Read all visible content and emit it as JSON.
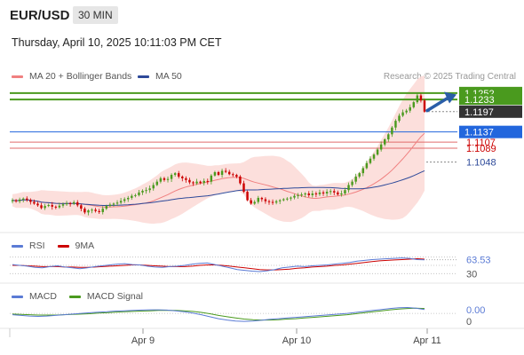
{
  "header": {
    "pair": "EUR/USD",
    "timeframe": "30 MIN",
    "datetime": "Thursday, April 10, 2025 10:11:03 PM CET"
  },
  "legend": {
    "ma20": "MA 20 + Bollinger Bands",
    "ma50": "MA 50",
    "ma20_color": "#f08080",
    "ma50_color": "#2e4a9a",
    "research": "Research © 2025 Trading Central"
  },
  "rsi_legend": {
    "rsi": "RSI",
    "ma9": "9MA",
    "rsi_color": "#5b7bd5",
    "ma9_color": "#cc0000"
  },
  "macd_legend": {
    "macd": "MACD",
    "signal": "MACD Signal",
    "macd_color": "#5b7bd5",
    "signal_color": "#4a9a1e"
  },
  "chart_data": [
    {
      "type": "candlestick",
      "name": "price",
      "xlabels": [
        "Apr 9",
        "Apr 10",
        "Apr 11"
      ],
      "levels": [
        {
          "value": 1.1252,
          "label": "1.1252",
          "kind": "resistance-green",
          "color": "#4a9a1e"
        },
        {
          "value": 1.1233,
          "label": "1.1233",
          "kind": "resistance-green",
          "color": "#4a9a1e"
        },
        {
          "value": 1.1197,
          "label": "1.1197",
          "kind": "last-price",
          "color": "#333333"
        },
        {
          "value": 1.1137,
          "label": "1.1137",
          "kind": "pivot",
          "color": "#2266dd"
        },
        {
          "value": 1.1107,
          "label": "1.1107",
          "kind": "support-red",
          "color": "#cc0000"
        },
        {
          "value": 1.1089,
          "label": "1.1089",
          "kind": "support-red",
          "color": "#cc0000"
        },
        {
          "value": 1.1048,
          "label": "1.1048",
          "kind": "ma50-value",
          "color": "#2e4a9a"
        }
      ],
      "ylim": [
        1.085,
        1.127
      ]
    },
    {
      "type": "line",
      "name": "RSI",
      "labels": [
        {
          "value": 63.53,
          "text": "63.53"
        },
        {
          "value": 30,
          "text": "30"
        }
      ],
      "ylim": [
        20,
        80
      ]
    },
    {
      "type": "line",
      "name": "MACD",
      "labels": [
        {
          "value": 0.0,
          "text": "0.00"
        },
        {
          "value": 0.0,
          "text": "0"
        }
      ],
      "ylim": [
        -0.004,
        0.003
      ]
    }
  ],
  "price_series": {
    "close": [
      1.0935,
      1.0932,
      1.0937,
      1.094,
      1.0936,
      1.093,
      1.0925,
      1.092,
      1.0912,
      1.0918,
      1.0921,
      1.0916,
      1.0914,
      1.0919,
      1.0923,
      1.0926,
      1.0925,
      1.0929,
      1.092,
      1.091,
      1.0899,
      1.0905,
      1.0907,
      1.0903,
      1.09,
      1.091,
      1.0918,
      1.0922,
      1.0925,
      1.0928,
      1.0933,
      1.0938,
      1.0942,
      1.0948,
      1.095,
      1.0958,
      1.0963,
      1.0965,
      1.097,
      1.098,
      1.099,
      1.1,
      1.0995,
      1.0998,
      1.101,
      1.1015,
      1.1005,
      1.1,
      1.0995,
      1.0988,
      1.0985,
      1.099,
      1.0986,
      1.0992,
      1.099,
      1.1008,
      1.1018,
      1.101,
      1.1022,
      1.1019,
      1.1012,
      1.101,
      1.1005,
      1.0985,
      1.096,
      1.0935,
      1.0925,
      1.093,
      1.0942,
      1.0938,
      1.0932,
      1.093,
      1.0928,
      1.0932,
      1.0935,
      1.0938,
      1.094,
      1.0943,
      1.0948,
      1.095,
      1.0952,
      1.0955,
      1.095,
      1.0955,
      1.0953,
      1.0958,
      1.0955,
      1.096,
      1.0962,
      1.0958,
      1.0952,
      1.0955,
      1.0965,
      1.098,
      1.099,
      1.1005,
      1.1015,
      1.103,
      1.1045,
      1.1058,
      1.107,
      1.1085,
      1.11,
      1.1115,
      1.113,
      1.115,
      1.117,
      1.1185,
      1.1195,
      1.12,
      1.121,
      1.1225,
      1.1245,
      1.123,
      1.1197
    ]
  },
  "rsi_series": {
    "rsi": [
      52,
      50,
      48,
      45,
      44,
      47,
      49,
      46,
      44,
      42,
      44,
      47,
      49,
      51,
      53,
      54,
      52,
      51,
      48,
      46,
      45,
      47,
      48,
      50,
      53,
      55,
      56,
      52,
      48,
      44,
      40,
      38,
      36,
      35,
      37,
      40,
      44,
      46,
      48,
      47,
      49,
      50,
      51,
      53,
      55,
      57,
      60,
      62,
      64,
      65,
      66,
      67,
      68,
      67,
      64,
      63.53
    ],
    "ma9": [
      50,
      50,
      49,
      48,
      47,
      47,
      47,
      46,
      46,
      45,
      45,
      46,
      47,
      48,
      49,
      50,
      51,
      51,
      50,
      49,
      48,
      47,
      47,
      47,
      48,
      50,
      51,
      51,
      50,
      48,
      46,
      44,
      42,
      40,
      39,
      39,
      40,
      41,
      43,
      44,
      46,
      47,
      48,
      50,
      51,
      53,
      55,
      57,
      59,
      61,
      62,
      63,
      64,
      65,
      66,
      65
    ]
  },
  "macd_series": {
    "macd": [
      -0.0004,
      -0.0006,
      -0.0008,
      -0.0009,
      -0.0008,
      -0.0006,
      -0.0004,
      -0.0002,
      0.0,
      0.0002,
      0.0004,
      0.0005,
      0.0007,
      0.0008,
      0.0009,
      0.001,
      0.0011,
      0.0011,
      0.001,
      0.0008,
      0.0005,
      0.0001,
      -0.0004,
      -0.001,
      -0.0016,
      -0.002,
      -0.0023,
      -0.0024,
      -0.0023,
      -0.0021,
      -0.0018,
      -0.0016,
      -0.0014,
      -0.0012,
      -0.001,
      -0.0008,
      -0.0006,
      -0.0004,
      -0.0002,
      0.0,
      0.0003,
      0.0006,
      0.0009,
      0.0012,
      0.0015,
      0.0017,
      0.0018,
      0.0016,
      0.0012
    ],
    "signal": [
      -0.0002,
      -0.0003,
      -0.0004,
      -0.0005,
      -0.0005,
      -0.0005,
      -0.0004,
      -0.0003,
      -0.0002,
      -0.0001,
      0.0001,
      0.0002,
      0.0004,
      0.0005,
      0.0006,
      0.0007,
      0.0008,
      0.0009,
      0.0009,
      0.0009,
      0.0008,
      0.0006,
      0.0003,
      -0.0001,
      -0.0006,
      -0.001,
      -0.0014,
      -0.0017,
      -0.0019,
      -0.002,
      -0.002,
      -0.0019,
      -0.0017,
      -0.0016,
      -0.0014,
      -0.0012,
      -0.001,
      -0.0008,
      -0.0006,
      -0.0004,
      -0.0001,
      0.0002,
      0.0005,
      0.0008,
      0.0011,
      0.0013,
      0.0015,
      0.0016,
      0.0015
    ]
  }
}
